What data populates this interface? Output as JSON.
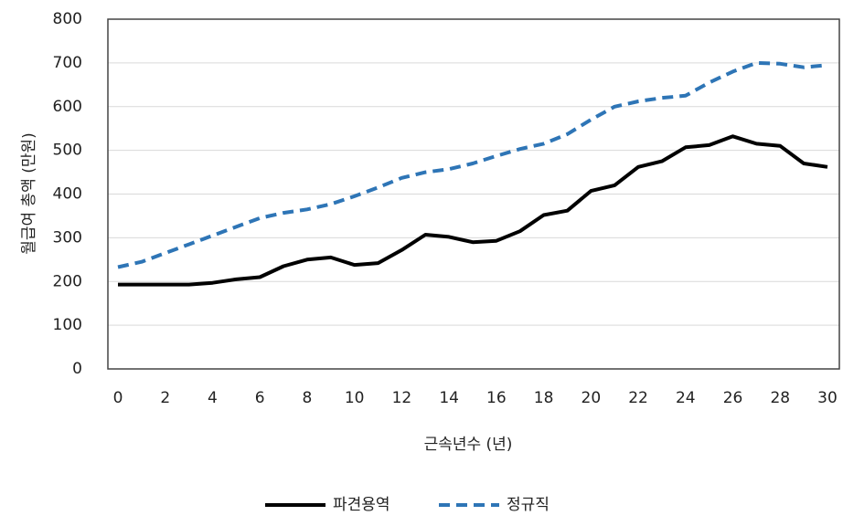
{
  "chart_data": {
    "type": "line",
    "xlabel": "근속년수 (년)",
    "ylabel": "월급여 총액 (만원)",
    "x": [
      0,
      1,
      2,
      3,
      4,
      5,
      6,
      7,
      8,
      9,
      10,
      11,
      12,
      13,
      14,
      15,
      16,
      17,
      18,
      19,
      20,
      21,
      22,
      23,
      24,
      25,
      26,
      27,
      28,
      29,
      30
    ],
    "series": [
      {
        "name": "파견용역",
        "color": "#000000",
        "dash": false,
        "values": [
          193,
          193,
          193,
          193,
          197,
          205,
          210,
          235,
          250,
          255,
          238,
          242,
          272,
          307,
          302,
          290,
          293,
          315,
          352,
          362,
          407,
          420,
          462,
          475,
          507,
          512,
          532,
          515,
          510,
          470,
          462
        ]
      },
      {
        "name": "정규직",
        "color": "#2e75b6",
        "dash": true,
        "values": [
          233,
          245,
          265,
          285,
          305,
          325,
          345,
          357,
          365,
          377,
          395,
          415,
          437,
          450,
          457,
          470,
          487,
          503,
          515,
          537,
          570,
          600,
          612,
          620,
          625,
          655,
          680,
          700,
          698,
          690,
          695
        ]
      }
    ],
    "xlim": [
      0,
      30
    ],
    "xticks": [
      0,
      2,
      4,
      6,
      8,
      10,
      12,
      14,
      16,
      18,
      20,
      22,
      24,
      26,
      28,
      30
    ],
    "ylim": [
      0,
      800
    ],
    "yticks": [
      0,
      100,
      200,
      300,
      400,
      500,
      600,
      700,
      800
    ],
    "grid": true,
    "legend": "bottom"
  }
}
